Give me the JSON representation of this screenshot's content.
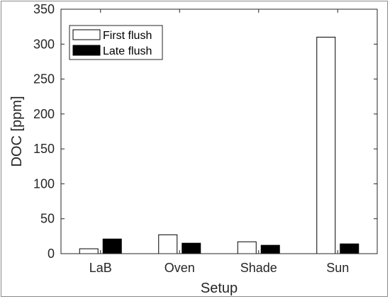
{
  "chart_data": {
    "type": "bar",
    "categories": [
      "LaB",
      "Oven",
      "Shade",
      "Sun"
    ],
    "series": [
      {
        "name": "First flush",
        "values": [
          7,
          27,
          17,
          310
        ],
        "color": "#ffffff"
      },
      {
        "name": "Late flush",
        "values": [
          21,
          15,
          12,
          14
        ],
        "color": "#000000"
      }
    ],
    "xlabel": "Setup",
    "ylabel": "DOC [ppm]",
    "ylim": [
      0,
      350
    ],
    "yticks": [
      0,
      50,
      100,
      150,
      200,
      250,
      300,
      350
    ],
    "grid": false,
    "legend_position": "top-left"
  }
}
